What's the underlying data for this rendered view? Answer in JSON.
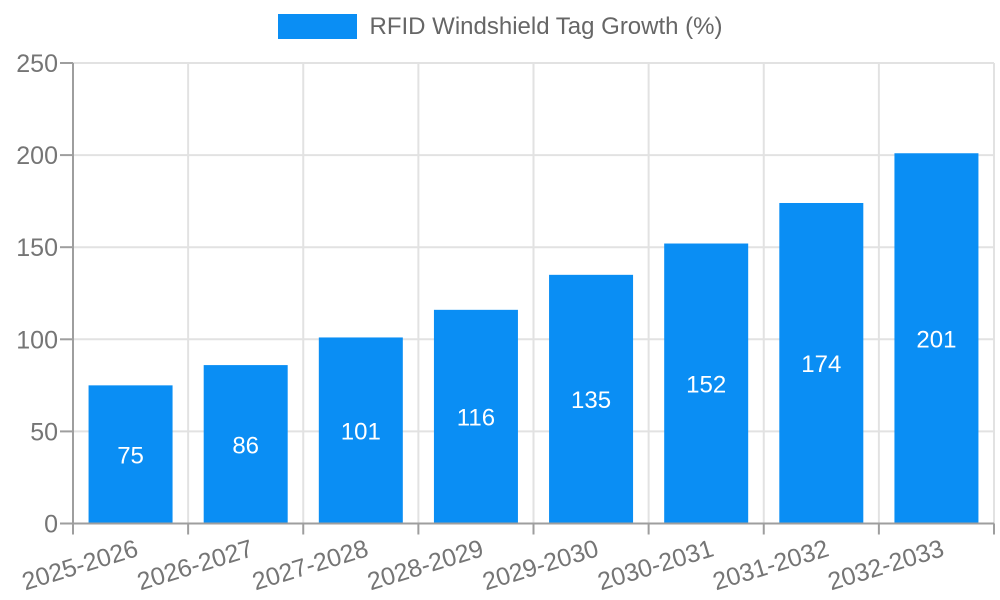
{
  "chart_data": {
    "type": "bar",
    "title": "RFID Windshield Tag Growth (%)",
    "legend": [
      "RFID Windshield Tag Growth (%)"
    ],
    "legend_position": "top",
    "categories": [
      "2025-2026",
      "2026-2027",
      "2027-2028",
      "2028-2029",
      "2029-2030",
      "2030-2031",
      "2031-2032",
      "2032-2033"
    ],
    "values": [
      75,
      86,
      101,
      116,
      135,
      152,
      174,
      201
    ],
    "xlabel": "",
    "ylabel": "",
    "ylim": [
      0,
      250
    ],
    "yticks": [
      0,
      50,
      100,
      150,
      200,
      250
    ],
    "grid": true,
    "value_labels": "inside-center",
    "colors": {
      "bar": "#0a8ef4",
      "grid": "#e2e2e2",
      "axis": "#9e9e9e",
      "tick_text": "#757575",
      "legend_text": "#666666",
      "value_text": "#ffffff",
      "background": "#ffffff"
    }
  }
}
